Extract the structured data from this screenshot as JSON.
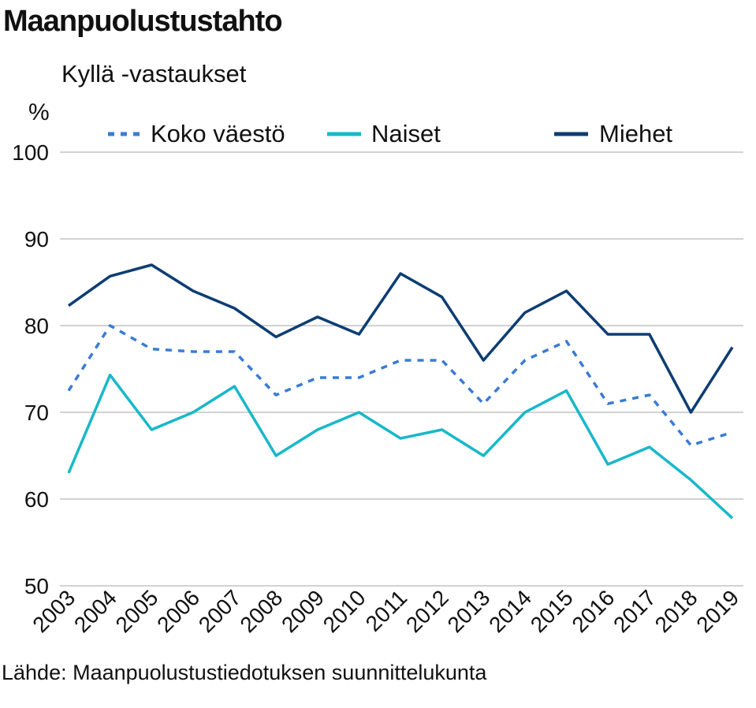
{
  "chart_data": {
    "type": "line",
    "title": "Maanpuolustustahto",
    "subtitle": "Kyllä -vastaukset",
    "ylabel": "%",
    "xlabel": "",
    "source": "Lähde: Maanpuolustustiedotuksen suunnittelukunta",
    "ylim": [
      50,
      100
    ],
    "yticks": [
      50,
      60,
      70,
      80,
      90,
      100
    ],
    "grid": true,
    "legend_position": "top",
    "categories": [
      "2003",
      "2004",
      "2005",
      "2006",
      "2007",
      "2008",
      "2009",
      "2010",
      "2011",
      "2012",
      "2013",
      "2014",
      "2015",
      "2016",
      "2017",
      "2018",
      "2019"
    ],
    "series": [
      {
        "name": "Koko väestö",
        "color": "#3a7bd5",
        "style": "dotted",
        "values": [
          72.5,
          80,
          77.3,
          77,
          77,
          72,
          74,
          74,
          76,
          76,
          71,
          76,
          78.2,
          71,
          72,
          66.2,
          67.7
        ]
      },
      {
        "name": "Naiset",
        "color": "#17b8c9",
        "style": "solid",
        "values": [
          63,
          74.3,
          68,
          70,
          73,
          65,
          68,
          70,
          67,
          68,
          65,
          70,
          72.5,
          64,
          66,
          62.2,
          57.8
        ]
      },
      {
        "name": "Miehet",
        "color": "#0d3d73",
        "style": "solid",
        "values": [
          82.3,
          85.7,
          87,
          84,
          82,
          78.7,
          81,
          79,
          86,
          83.3,
          76,
          81.5,
          84,
          79,
          79,
          70,
          77.5
        ]
      }
    ]
  }
}
